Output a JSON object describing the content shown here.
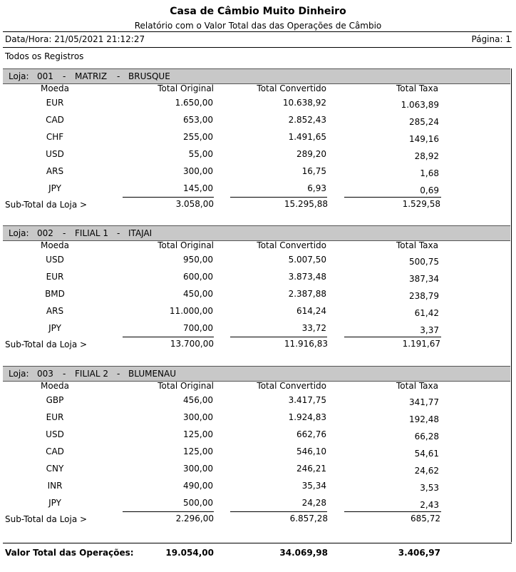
{
  "report": {
    "title": "Casa de Câmbio Muito Dinheiro",
    "subtitle": "Relatório com o Valor Total das das Operações de Câmbio",
    "date_label": "Data/Hora:",
    "date_value": "21/05/2021 21:12:27",
    "page_label": "Página:",
    "page_value": "1",
    "filter": "Todos os Registros",
    "loja_label": "Loja:",
    "dash": "-"
  },
  "columns": {
    "moeda": "Moeda",
    "total_original": "Total Original",
    "total_convertido": "Total Convertido",
    "total_taxa": "Total Taxa"
  },
  "subtotal_label": "Sub-Total da Loja >",
  "stores": [
    {
      "code": "001",
      "name": "MATRIZ",
      "city": "BRUSQUE",
      "rows": [
        {
          "moeda": "EUR",
          "original": "1.650,00",
          "convertido": "10.638,92",
          "taxa": "1.063,89"
        },
        {
          "moeda": "CAD",
          "original": "653,00",
          "convertido": "2.852,43",
          "taxa": "285,24"
        },
        {
          "moeda": "CHF",
          "original": "255,00",
          "convertido": "1.491,65",
          "taxa": "149,16"
        },
        {
          "moeda": "USD",
          "original": "55,00",
          "convertido": "289,20",
          "taxa": "28,92"
        },
        {
          "moeda": "ARS",
          "original": "300,00",
          "convertido": "16,75",
          "taxa": "1,68"
        },
        {
          "moeda": "JPY",
          "original": "145,00",
          "convertido": "6,93",
          "taxa": "0,69"
        }
      ],
      "subtotal": {
        "original": "3.058,00",
        "convertido": "15.295,88",
        "taxa": "1.529,58"
      }
    },
    {
      "code": "002",
      "name": "FILIAL 1",
      "city": "ITAJAI",
      "rows": [
        {
          "moeda": "USD",
          "original": "950,00",
          "convertido": "5.007,50",
          "taxa": "500,75"
        },
        {
          "moeda": "EUR",
          "original": "600,00",
          "convertido": "3.873,48",
          "taxa": "387,34"
        },
        {
          "moeda": "BMD",
          "original": "450,00",
          "convertido": "2.387,88",
          "taxa": "238,79"
        },
        {
          "moeda": "ARS",
          "original": "11.000,00",
          "convertido": "614,24",
          "taxa": "61,42"
        },
        {
          "moeda": "JPY",
          "original": "700,00",
          "convertido": "33,72",
          "taxa": "3,37"
        }
      ],
      "subtotal": {
        "original": "13.700,00",
        "convertido": "11.916,83",
        "taxa": "1.191,67"
      }
    },
    {
      "code": "003",
      "name": "FILIAL 2",
      "city": "BLUMENAU",
      "rows": [
        {
          "moeda": "GBP",
          "original": "456,00",
          "convertido": "3.417,75",
          "taxa": "341,77"
        },
        {
          "moeda": "EUR",
          "original": "300,00",
          "convertido": "1.924,83",
          "taxa": "192,48"
        },
        {
          "moeda": "USD",
          "original": "125,00",
          "convertido": "662,76",
          "taxa": "66,28"
        },
        {
          "moeda": "CAD",
          "original": "125,00",
          "convertido": "546,10",
          "taxa": "54,61"
        },
        {
          "moeda": "CNY",
          "original": "300,00",
          "convertido": "246,21",
          "taxa": "24,62"
        },
        {
          "moeda": "INR",
          "original": "490,00",
          "convertido": "35,34",
          "taxa": "3,53"
        },
        {
          "moeda": "JPY",
          "original": "500,00",
          "convertido": "24,28",
          "taxa": "2,43"
        }
      ],
      "subtotal": {
        "original": "2.296,00",
        "convertido": "6.857,28",
        "taxa": "685,72"
      }
    }
  ],
  "grand_total": {
    "label": "Valor Total das Operações:",
    "original": "19.054,00",
    "convertido": "34.069,98",
    "taxa": "3.406,97"
  }
}
